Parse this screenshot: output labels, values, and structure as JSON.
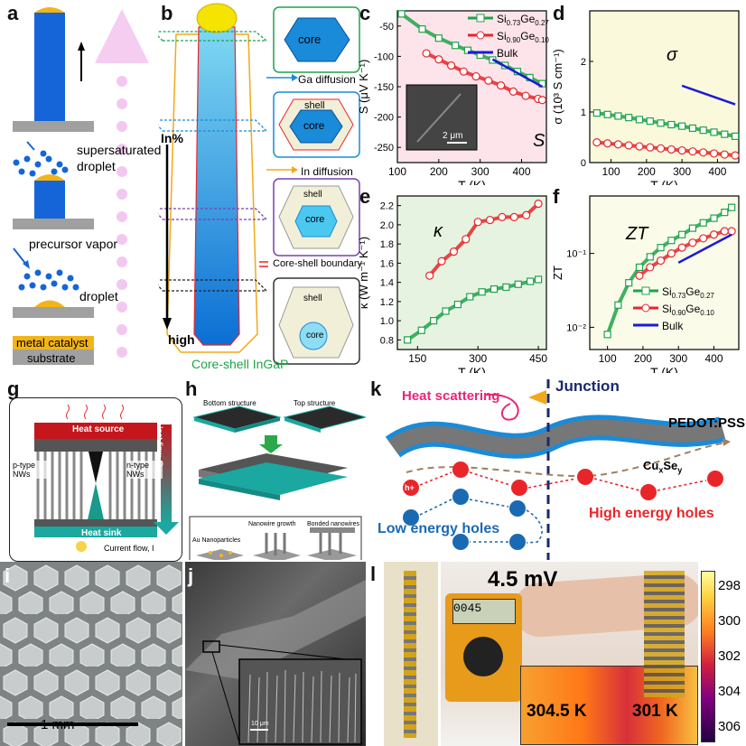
{
  "panel_labels": {
    "a": "a",
    "b": "b",
    "c": "c",
    "d": "d",
    "e": "e",
    "f": "f",
    "g": "g",
    "h": "h",
    "i": "i",
    "j": "j",
    "k": "k",
    "l": "l"
  },
  "panel_a": {
    "supersaturated": "supersaturated",
    "droplet_top": "droplet",
    "precursor": "precursor vapor",
    "droplet": "droplet",
    "metal_catalyst": "metal catalyst",
    "substrate": "substrate"
  },
  "panel_b": {
    "core1": "core",
    "ga_diffusion": "Ga diffusion",
    "shell2": "shell",
    "core2": "core",
    "in_diffusion": "In diffusion",
    "shell3": "shell",
    "core3": "core",
    "boundary": "Core-shell boundary",
    "shell4": "shell",
    "core4": "core",
    "in_pct": "In%",
    "high": "high",
    "caption": "Core-shell InGaP"
  },
  "panel_g": {
    "heat_source": "Heat source",
    "heat_sink": "Heat sink",
    "p_type": "p-type NWs",
    "n_type": "n-type NWs",
    "heat_flow": "Heat flow, Q",
    "current_flow": "Current flow, I"
  },
  "panel_h": {
    "bottom": "Bottom structure",
    "top": "Top structure",
    "au": "Au Nanoparticles",
    "growth": "Nanowire growth",
    "bonded": "Bonded nanowires"
  },
  "panel_i": {
    "scale": "1 mm"
  },
  "panel_j": {
    "scale": "10 μm"
  },
  "panel_k": {
    "heat_scattering": "Heat scattering",
    "junction": "Junction",
    "pedot": "PEDOT:PSS",
    "cu_base": "Cu",
    "cu_x": "x",
    "cu_se": "Se",
    "cu_y": "y",
    "low_energy": "Low energy holes",
    "high_energy": "High energy holes",
    "hole": "h+"
  },
  "panel_l": {
    "voltage": "4.5 mV",
    "meter": "0045",
    "temp_left": "304.5 K",
    "temp_right": "301 K",
    "cbar_ticks": [
      "298",
      "300",
      "302",
      "304",
      "306"
    ]
  },
  "colors": {
    "green": "#1fa34a",
    "red": "#e8262a",
    "blue": "#1a1ad8"
  },
  "chart_data": [
    {
      "id": "c",
      "type": "line",
      "xlabel": "T (K)",
      "ylabel": "S (μV K⁻¹)",
      "title": "S",
      "xlim": [
        100,
        460
      ],
      "ylim": [
        -275,
        -25
      ],
      "xticks": [
        100,
        200,
        300,
        400
      ],
      "yticks": [
        -50,
        -100,
        -150,
        -200,
        -250
      ],
      "scale_bar": "2 μm",
      "series": [
        {
          "name": "Si0.73Ge0.27",
          "color": "#1fa34a",
          "marker": "square",
          "x": [
            110,
            160,
            200,
            240,
            270,
            300,
            330,
            360,
            390,
            420,
            450
          ],
          "y": [
            -30,
            -55,
            -70,
            -82,
            -90,
            -98,
            -106,
            -115,
            -125,
            -135,
            -145
          ]
        },
        {
          "name": "Si0.90Ge0.10",
          "color": "#e8262a",
          "marker": "circle",
          "x": [
            170,
            200,
            230,
            260,
            290,
            320,
            350,
            380,
            410,
            440,
            450
          ],
          "y": [
            -95,
            -105,
            -115,
            -125,
            -133,
            -140,
            -148,
            -158,
            -165,
            -170,
            -172
          ]
        },
        {
          "name": "Bulk",
          "color": "#1a1ad8",
          "marker": "none",
          "x": [
            330,
            450
          ],
          "y": [
            -105,
            -150
          ]
        }
      ]
    },
    {
      "id": "d",
      "type": "line",
      "xlabel": "T (K)",
      "ylabel": "σ (10³ S cm⁻¹)",
      "title": "σ",
      "xlim": [
        40,
        460
      ],
      "ylim": [
        0,
        3
      ],
      "xticks": [
        100,
        200,
        300,
        400
      ],
      "yticks": [
        0,
        1,
        2
      ],
      "series": [
        {
          "name": "Si0.73Ge0.27",
          "color": "#1fa34a",
          "marker": "square",
          "x": [
            60,
            90,
            120,
            150,
            180,
            210,
            240,
            270,
            300,
            330,
            360,
            390,
            420,
            450
          ],
          "y": [
            0.98,
            0.95,
            0.92,
            0.89,
            0.85,
            0.82,
            0.78,
            0.75,
            0.72,
            0.68,
            0.64,
            0.6,
            0.56,
            0.52
          ]
        },
        {
          "name": "Si0.90Ge0.10",
          "color": "#e8262a",
          "marker": "circle",
          "x": [
            60,
            90,
            120,
            150,
            180,
            210,
            240,
            270,
            300,
            330,
            360,
            390,
            420,
            450
          ],
          "y": [
            0.4,
            0.38,
            0.36,
            0.34,
            0.32,
            0.3,
            0.28,
            0.26,
            0.24,
            0.22,
            0.2,
            0.18,
            0.16,
            0.14
          ]
        },
        {
          "name": "Bulk",
          "color": "#1a1ad8",
          "marker": "none",
          "x": [
            300,
            450
          ],
          "y": [
            1.52,
            1.15
          ]
        }
      ]
    },
    {
      "id": "e",
      "type": "line",
      "xlabel": "T (K)",
      "ylabel": "κ (W m⁻¹ K⁻¹)",
      "title": "κ",
      "xlim": [
        100,
        470
      ],
      "ylim": [
        0.7,
        2.3
      ],
      "xticks": [
        150,
        300,
        450
      ],
      "yticks": [
        0.8,
        1.0,
        1.2,
        1.4,
        1.6,
        1.8,
        2.0,
        2.2
      ],
      "series": [
        {
          "name": "Si0.73Ge0.27",
          "color": "#1fa34a",
          "marker": "square",
          "x": [
            125,
            160,
            190,
            220,
            250,
            280,
            310,
            340,
            370,
            400,
            430,
            450
          ],
          "y": [
            0.8,
            0.9,
            1.0,
            1.1,
            1.17,
            1.25,
            1.3,
            1.33,
            1.35,
            1.38,
            1.41,
            1.43
          ]
        },
        {
          "name": "Si0.90Ge0.10",
          "color": "#e8262a",
          "marker": "circle",
          "x": [
            180,
            210,
            240,
            270,
            300,
            330,
            360,
            390,
            420,
            450
          ],
          "y": [
            1.47,
            1.62,
            1.72,
            1.85,
            2.03,
            2.05,
            2.08,
            2.08,
            2.1,
            2.22
          ]
        }
      ]
    },
    {
      "id": "f",
      "type": "line",
      "yscale": "log",
      "xlabel": "T (K)",
      "ylabel": "ZT",
      "title": "ZT",
      "xlim": [
        50,
        470
      ],
      "ylim": [
        0.005,
        0.6
      ],
      "xticks": [
        100,
        200,
        300,
        400
      ],
      "yticks_label": [
        "10⁻²",
        "10⁻¹"
      ],
      "series": [
        {
          "name": "Si0.73Ge0.27",
          "color": "#1fa34a",
          "marker": "square",
          "x": [
            100,
            130,
            160,
            190,
            220,
            250,
            280,
            310,
            340,
            370,
            400,
            430,
            450
          ],
          "y": [
            0.008,
            0.02,
            0.04,
            0.065,
            0.09,
            0.12,
            0.15,
            0.18,
            0.22,
            0.26,
            0.3,
            0.36,
            0.42
          ]
        },
        {
          "name": "Si0.90Ge0.10",
          "color": "#e8262a",
          "marker": "circle",
          "x": [
            190,
            220,
            250,
            280,
            310,
            340,
            370,
            400,
            430,
            450
          ],
          "y": [
            0.05,
            0.065,
            0.08,
            0.1,
            0.12,
            0.14,
            0.16,
            0.18,
            0.2,
            0.2
          ]
        },
        {
          "name": "Bulk",
          "color": "#1a1ad8",
          "marker": "none",
          "x": [
            300,
            450
          ],
          "y": [
            0.075,
            0.18
          ]
        }
      ]
    }
  ]
}
